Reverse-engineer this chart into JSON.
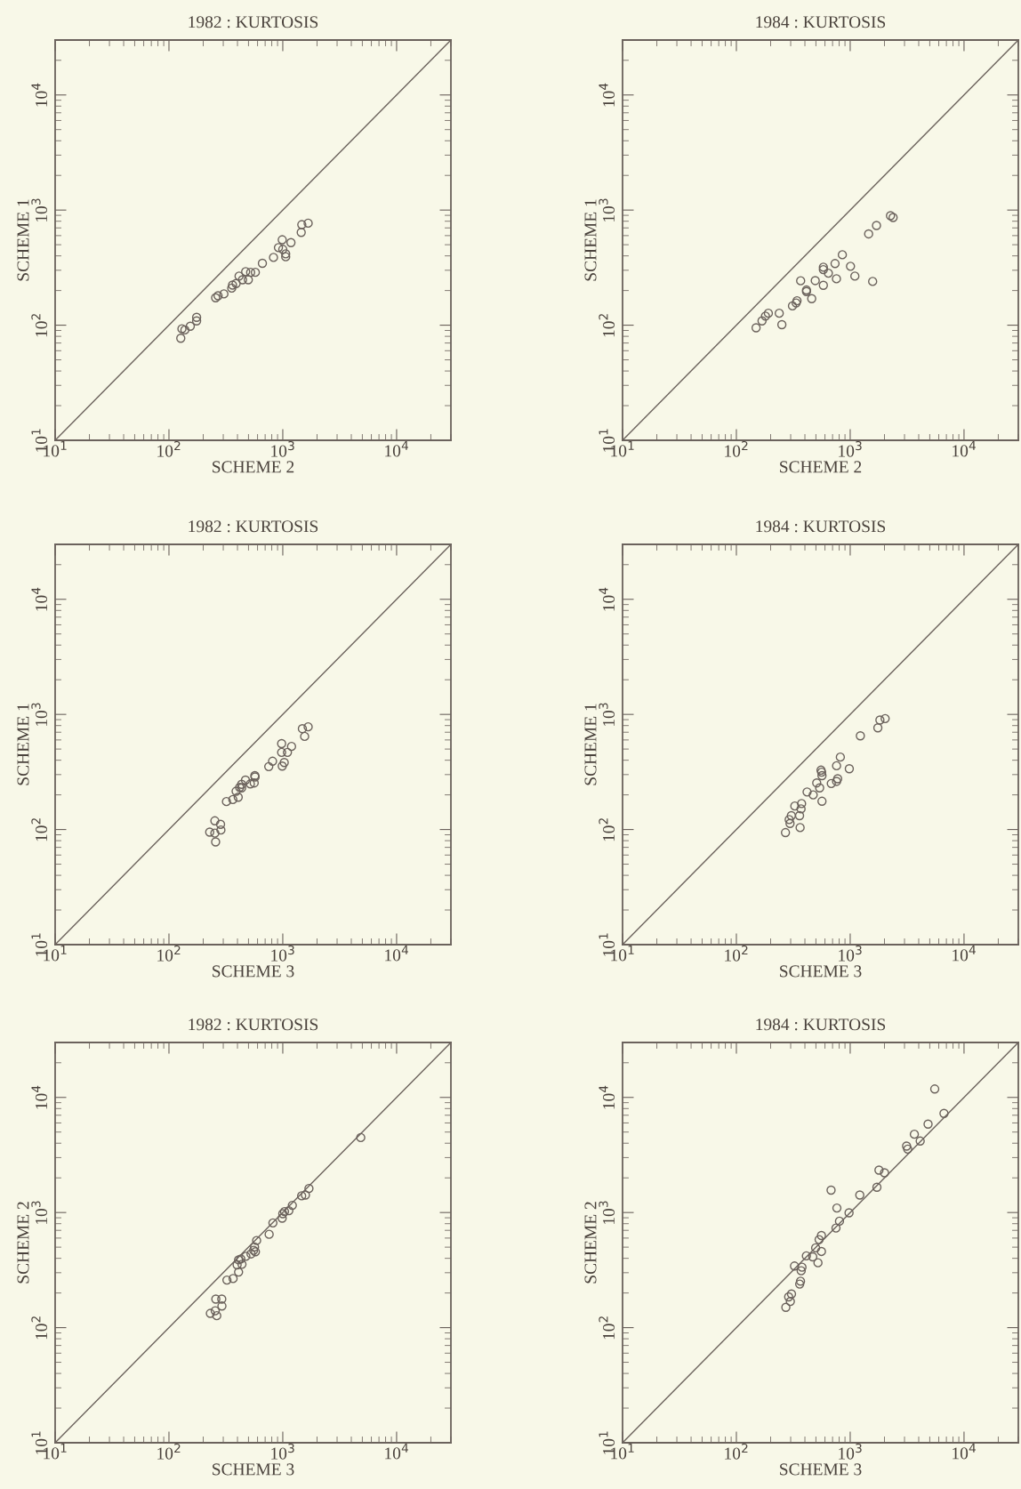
{
  "chart_data": [
    {
      "type": "scatter",
      "title": "1982 : KURTOSIS",
      "xlabel": "SCHEME 2",
      "ylabel": "SCHEME 1",
      "log": "xy",
      "marker": "circle",
      "grid": false,
      "legend": false,
      "xlim": [
        10,
        30000
      ],
      "ylim": [
        10,
        30000
      ],
      "xticks": [
        {
          "value": 10,
          "label": "10$^{1}$"
        },
        {
          "value": 100,
          "label": "10$^{2}$"
        },
        {
          "value": 1000,
          "label": "10$^{3}$"
        },
        {
          "value": 10000,
          "label": "10$^{4}$"
        }
      ],
      "yticks": [
        {
          "value": 10,
          "label": "10$^{1}$"
        },
        {
          "value": 100,
          "label": "10$^{2}$"
        },
        {
          "value": 1000,
          "label": "10$^{3}$"
        },
        {
          "value": 10000,
          "label": "10$^{4}$"
        }
      ],
      "series": [
        {
          "color": "#6b625c",
          "x": [
            127,
            130,
            138,
            154,
            175,
            175,
            257,
            270,
            304,
            356,
            362,
            389,
            413,
            443,
            472,
            498,
            522,
            574,
            662,
            829,
            916,
            989,
            1000,
            1061,
            1061,
            1180,
            1452,
            1469,
            1671
          ],
          "values": [
            77,
            93,
            91,
            98,
            117,
            109,
            173,
            180,
            187,
            210,
            223,
            230,
            267,
            248,
            292,
            248,
            288,
            288,
            345,
            388,
            472,
            552,
            456,
            417,
            393,
            522,
            640,
            747,
            769
          ]
        },
        {
          "type": "line",
          "color": "#6b625c",
          "marker": "none",
          "x": [
            10,
            30000
          ],
          "values": [
            10,
            30000
          ]
        }
      ]
    },
    {
      "type": "scatter",
      "title": "1984 : KURTOSIS",
      "xlabel": "SCHEME 2",
      "ylabel": "SCHEME 1",
      "log": "xy",
      "marker": "circle",
      "grid": false,
      "legend": false,
      "xlim": [
        10,
        30000
      ],
      "ylim": [
        10,
        30000
      ],
      "xticks": [
        {
          "value": 10,
          "label": "10$^{1}$"
        },
        {
          "value": 100,
          "label": "10$^{2}$"
        },
        {
          "value": 1000,
          "label": "10$^{3}$"
        },
        {
          "value": 10000,
          "label": "10$^{4}$"
        }
      ],
      "yticks": [
        {
          "value": 10,
          "label": "10$^{1}$"
        },
        {
          "value": 100,
          "label": "10$^{2}$"
        },
        {
          "value": 1000,
          "label": "10$^{3}$"
        },
        {
          "value": 10000,
          "label": "10$^{4}$"
        }
      ],
      "series": [
        {
          "color": "#6b625c",
          "x": [
            149,
            168,
            180,
            191,
            238,
            251,
            311,
            335,
            341,
            367,
            413,
            413,
            459,
            493,
            581,
            581,
            581,
            643,
            736,
            757,
            853,
            1006,
            1099,
            1452,
            1575,
            1702,
            2259,
            2382
          ],
          "values": [
            95,
            109,
            120,
            127,
            127,
            101,
            147,
            156,
            163,
            243,
            202,
            196,
            170,
            244,
            222,
            319,
            304,
            283,
            343,
            253,
            409,
            325,
            267,
            621,
            240,
            735,
            894,
            862
          ]
        },
        {
          "type": "line",
          "color": "#6b625c",
          "marker": "none",
          "x": [
            10,
            30000
          ],
          "values": [
            10,
            30000
          ]
        }
      ]
    },
    {
      "type": "scatter",
      "title": "1982 : KURTOSIS",
      "xlabel": "SCHEME 3",
      "ylabel": "SCHEME 1",
      "log": "xy",
      "marker": "circle",
      "grid": false,
      "legend": false,
      "xlim": [
        10,
        30000
      ],
      "ylim": [
        10,
        30000
      ],
      "xticks": [
        {
          "value": 10,
          "label": "10$^{1}$"
        },
        {
          "value": 100,
          "label": "10$^{2}$"
        },
        {
          "value": 1000,
          "label": "10$^{3}$"
        },
        {
          "value": 10000,
          "label": "10$^{4}$"
        }
      ],
      "yticks": [
        {
          "value": 10,
          "label": "10$^{1}$"
        },
        {
          "value": 100,
          "label": "10$^{2}$"
        },
        {
          "value": 1000,
          "label": "10$^{3}$"
        },
        {
          "value": 10000,
          "label": "10$^{4}$"
        }
      ],
      "series": [
        {
          "color": "#6b625c",
          "x": [
            228,
            253,
            253,
            257,
            284,
            286,
            320,
            364,
            389,
            406,
            418,
            435,
            435,
            470,
            519,
            561,
            568,
            571,
            753,
            813,
            977,
            977,
            989,
            1030,
            1099,
            1194,
            1486,
            1556,
            1671
          ],
          "values": [
            95,
            119,
            93,
            78,
            111,
            99,
            175,
            182,
            215,
            191,
            232,
            230,
            247,
            269,
            249,
            254,
            294,
            286,
            352,
            392,
            558,
            468,
            356,
            382,
            468,
            527,
            752,
            644,
            780
          ]
        },
        {
          "type": "line",
          "color": "#6b625c",
          "marker": "none",
          "x": [
            10,
            30000
          ],
          "values": [
            10,
            30000
          ]
        }
      ]
    },
    {
      "type": "scatter",
      "title": "1984 : KURTOSIS",
      "xlabel": "SCHEME 3",
      "ylabel": "SCHEME 1",
      "log": "xy",
      "marker": "circle",
      "grid": false,
      "legend": false,
      "xlim": [
        10,
        30000
      ],
      "ylim": [
        10,
        30000
      ],
      "xticks": [
        {
          "value": 10,
          "label": "10$^{1}$"
        },
        {
          "value": 100,
          "label": "10$^{2}$"
        },
        {
          "value": 1000,
          "label": "10$^{3}$"
        },
        {
          "value": 10000,
          "label": "10$^{4}$"
        }
      ],
      "yticks": [
        {
          "value": 10,
          "label": "10$^{1}$"
        },
        {
          "value": 100,
          "label": "10$^{2}$"
        },
        {
          "value": 1000,
          "label": "10$^{3}$"
        },
        {
          "value": 10000,
          "label": "10$^{4}$"
        }
      ],
      "series": [
        {
          "color": "#6b625c",
          "x": [
            270,
            296,
            291,
            304,
            326,
            359,
            363,
            370,
            374,
            418,
            473,
            508,
            539,
            565,
            565,
            554,
            561,
            682,
            759,
            776,
            759,
            819,
            982,
            1228,
            1750,
            1824,
            2028
          ],
          "values": [
            94,
            113,
            122,
            132,
            160,
            132,
            104,
            151,
            168,
            212,
            200,
            254,
            230,
            176,
            294,
            328,
            315,
            251,
            262,
            276,
            358,
            426,
            337,
            652,
            765,
            893,
            920
          ]
        },
        {
          "type": "line",
          "color": "#6b625c",
          "marker": "none",
          "x": [
            10,
            30000
          ],
          "values": [
            10,
            30000
          ]
        }
      ]
    },
    {
      "type": "scatter",
      "title": "1982 : KURTOSIS",
      "xlabel": "SCHEME 3",
      "ylabel": "SCHEME 2",
      "log": "xy",
      "marker": "circle",
      "grid": false,
      "legend": false,
      "xlim": [
        10,
        30000
      ],
      "ylim": [
        10,
        30000
      ],
      "xticks": [
        {
          "value": 10,
          "label": "10$^{1}$"
        },
        {
          "value": 100,
          "label": "10$^{2}$"
        },
        {
          "value": 1000,
          "label": "10$^{3}$"
        },
        {
          "value": 10000,
          "label": "10$^{4}$"
        }
      ],
      "yticks": [
        {
          "value": 10,
          "label": "10$^{1}$"
        },
        {
          "value": 100,
          "label": "10$^{2}$"
        },
        {
          "value": 1000,
          "label": "10$^{3}$"
        },
        {
          "value": 10000,
          "label": "10$^{4}$"
        }
      ],
      "series": [
        {
          "color": "#6b625c",
          "x": [
            231,
            255,
            263,
            258,
            291,
            292,
            323,
            366,
            409,
            397,
            409,
            428,
            438,
            474,
            526,
            555,
            565,
            575,
            589,
            759,
            819,
            988,
            1000,
            1036,
            1131,
            1213,
            1465,
            1582,
            1698,
            4842
          ],
          "values": [
            133,
            140,
            127,
            177,
            177,
            154,
            259,
            267,
            304,
            351,
            388,
            395,
            355,
            417,
            437,
            470,
            502,
            456,
            571,
            647,
            812,
            893,
            977,
            1019,
            1037,
            1154,
            1396,
            1420,
            1618,
            4477
          ]
        },
        {
          "type": "line",
          "color": "#6b625c",
          "marker": "none",
          "x": [
            10,
            30000
          ],
          "values": [
            10,
            30000
          ]
        }
      ]
    },
    {
      "type": "scatter",
      "title": "1984 : KURTOSIS",
      "xlabel": "SCHEME 3",
      "ylabel": "SCHEME 2",
      "log": "xy",
      "marker": "circle",
      "grid": false,
      "legend": false,
      "xlim": [
        10,
        30000
      ],
      "ylim": [
        10,
        30000
      ],
      "xticks": [
        {
          "value": 10,
          "label": "10$^{1}$"
        },
        {
          "value": 100,
          "label": "10$^{2}$"
        },
        {
          "value": 1000,
          "label": "10$^{3}$"
        },
        {
          "value": 10000,
          "label": "10$^{4}$"
        }
      ],
      "yticks": [
        {
          "value": 10,
          "label": "10$^{1}$"
        },
        {
          "value": 100,
          "label": "10$^{2}$"
        },
        {
          "value": 1000,
          "label": "10$^{3}$"
        },
        {
          "value": 10000,
          "label": "10$^{4}$"
        }
      ],
      "series": [
        {
          "color": "#6b625c",
          "x": [
            272,
            288,
            298,
            305,
            324,
            360,
            366,
            371,
            377,
            412,
            469,
            497,
            521,
            533,
            559,
            559,
            679,
            750,
            764,
            805,
            977,
            1214,
            1717,
            1790,
            2002,
            3128,
            3201,
            3661,
            4121,
            4831,
            5530,
            6668
          ],
          "values": [
            150,
            185,
            169,
            196,
            343,
            239,
            253,
            312,
            335,
            420,
            412,
            493,
            366,
            582,
            459,
            632,
            1564,
            733,
            1094,
            841,
            994,
            1420,
            1657,
            2335,
            2213,
            3776,
            3556,
            4786,
            4178,
            5863,
            11830,
            7261
          ]
        },
        {
          "type": "line",
          "color": "#6b625c",
          "marker": "none",
          "x": [
            10,
            30000
          ],
          "values": [
            10,
            30000
          ]
        }
      ]
    }
  ]
}
